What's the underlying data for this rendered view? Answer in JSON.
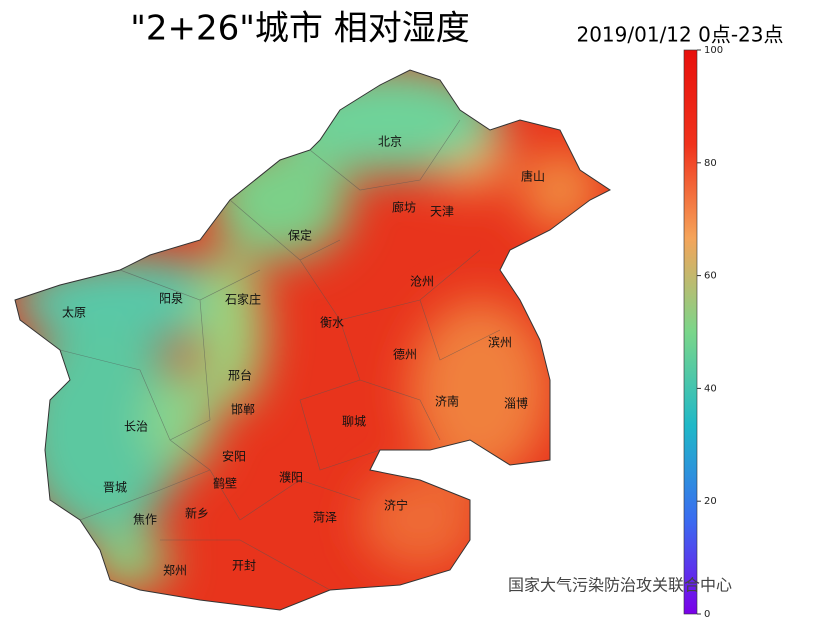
{
  "title": "\"2+26\"城市  相对湿度",
  "subtitle": "2019/01/12  0点-23点",
  "colorbar": {
    "lim": [
      0,
      100
    ],
    "ticks": [
      0,
      20,
      40,
      60,
      80,
      100
    ],
    "colors": [
      "#7a00e8",
      "#3a6cf0",
      "#1fb8c8",
      "#7ad68a",
      "#f5a45a",
      "#f0321c",
      "#e8100c"
    ]
  },
  "cities": [
    "北京",
    "唐山",
    "廊坊",
    "天津",
    "保定",
    "沧州",
    "石家庄",
    "阳泉",
    "太原",
    "衡水",
    "德州",
    "滨州",
    "邢台",
    "济南",
    "淄博",
    "长治",
    "邯郸",
    "聊城",
    "安阳",
    "鹤壁",
    "濮阳",
    "晋城",
    "焦作",
    "新乡",
    "菏泽",
    "济宁",
    "郑州",
    "开封"
  ],
  "watermark": "国家大气污染防治攻关联合中心"
}
